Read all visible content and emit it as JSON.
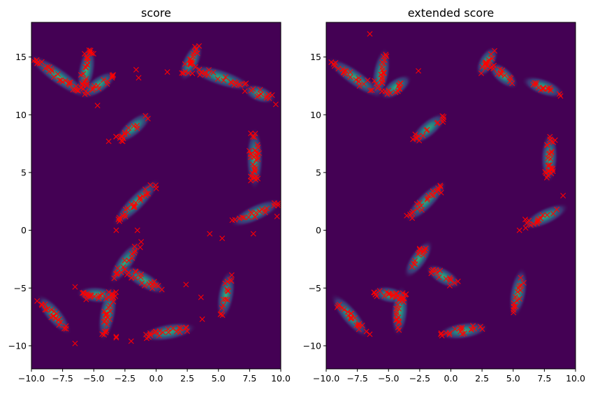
{
  "chart_data": [
    {
      "type": "scatter",
      "title": "score",
      "background_color": "#440154",
      "density_colormap": "viridis",
      "marker": "x",
      "marker_color": "#ff0000",
      "xlim": [
        -10,
        10
      ],
      "ylim": [
        -12,
        18
      ],
      "xticks": [
        -10.0,
        -7.5,
        -5.0,
        -2.5,
        0.0,
        2.5,
        5.0,
        7.5,
        10.0
      ],
      "xtick_labels": [
        "−10.0",
        "−7.5",
        "−5.0",
        "−2.5",
        "0.0",
        "2.5",
        "5.0",
        "7.5",
        "10.0"
      ],
      "yticks": [
        -10,
        -5,
        0,
        5,
        10,
        15
      ],
      "ytick_labels": [
        "−10",
        "−5",
        "0",
        "5",
        "10",
        "15"
      ],
      "clusters": [
        {
          "center": [
            -7.8,
            13.3
          ],
          "length": 2.6,
          "angle": -35,
          "count": 30
        },
        {
          "center": [
            -5.6,
            13.8
          ],
          "length": 1.8,
          "angle": 80,
          "count": 28
        },
        {
          "center": [
            -4.6,
            12.6
          ],
          "length": 1.5,
          "angle": 35,
          "count": 14
        },
        {
          "center": [
            -1.8,
            8.9
          ],
          "length": 1.6,
          "angle": 40,
          "count": 16
        },
        {
          "center": [
            2.8,
            14.6
          ],
          "length": 1.5,
          "angle": 65,
          "count": 22
        },
        {
          "center": [
            5.2,
            13.2
          ],
          "length": 2.4,
          "angle": -18,
          "count": 22
        },
        {
          "center": [
            8.3,
            11.8
          ],
          "length": 1.2,
          "angle": -20,
          "count": 12
        },
        {
          "center": [
            7.9,
            6.2
          ],
          "length": 2.2,
          "angle": 90,
          "count": 34
        },
        {
          "center": [
            8.0,
            1.5
          ],
          "length": 2.0,
          "angle": 25,
          "count": 20
        },
        {
          "center": [
            -1.6,
            2.4
          ],
          "length": 2.3,
          "angle": 45,
          "count": 26
        },
        {
          "center": [
            -2.5,
            -2.8
          ],
          "length": 1.8,
          "angle": 55,
          "count": 16
        },
        {
          "center": [
            -1.0,
            -4.3
          ],
          "length": 1.8,
          "angle": -30,
          "count": 20
        },
        {
          "center": [
            -4.7,
            -5.6
          ],
          "length": 1.5,
          "angle": -5,
          "count": 24
        },
        {
          "center": [
            -3.9,
            -7.2
          ],
          "length": 2.0,
          "angle": 80,
          "count": 24
        },
        {
          "center": [
            -8.2,
            -7.3
          ],
          "length": 1.8,
          "angle": -50,
          "count": 22
        },
        {
          "center": [
            5.6,
            -5.6
          ],
          "length": 1.8,
          "angle": 80,
          "count": 16
        },
        {
          "center": [
            1.0,
            -8.8
          ],
          "length": 2.0,
          "angle": 10,
          "count": 22
        }
      ],
      "outliers": [
        [
          -4.7,
          10.8
        ],
        [
          -1.6,
          13.9
        ],
        [
          0.9,
          13.7
        ],
        [
          -3.8,
          7.7
        ],
        [
          -3.2,
          8.1
        ],
        [
          4.3,
          -0.3
        ],
        [
          5.3,
          -0.7
        ],
        [
          7.8,
          -0.3
        ],
        [
          9.7,
          1.2
        ],
        [
          -3.2,
          0.0
        ],
        [
          -1.5,
          0.0
        ],
        [
          -1.2,
          -1.0
        ],
        [
          -6.5,
          -9.8
        ],
        [
          -2.0,
          -9.6
        ],
        [
          -3.2,
          -9.3
        ],
        [
          3.7,
          -7.7
        ],
        [
          3.6,
          -5.8
        ],
        [
          2.4,
          -4.7
        ],
        [
          -6.5,
          -4.9
        ],
        [
          -3.2,
          -9.2
        ],
        [
          -1.4,
          13.2
        ],
        [
          9.6,
          10.9
        ]
      ]
    },
    {
      "type": "scatter",
      "title": "extended score",
      "background_color": "#440154",
      "density_colormap": "viridis",
      "marker": "x",
      "marker_color": "#ff0000",
      "xlim": [
        -10,
        10
      ],
      "ylim": [
        -12,
        18
      ],
      "xticks": [
        -10.0,
        -7.5,
        -5.0,
        -2.5,
        0.0,
        2.5,
        5.0,
        7.5,
        10.0
      ],
      "xtick_labels": [
        "−10.0",
        "−7.5",
        "−5.0",
        "−2.5",
        "0.0",
        "2.5",
        "5.0",
        "7.5",
        "10.0"
      ],
      "yticks": [
        -10,
        -5,
        0,
        5,
        10,
        15
      ],
      "ytick_labels": [
        "−10",
        "−5",
        "0",
        "5",
        "10",
        "15"
      ],
      "clusters": [
        {
          "center": [
            -7.7,
            13.2
          ],
          "length": 2.4,
          "angle": -35,
          "count": 22
        },
        {
          "center": [
            -5.6,
            13.6
          ],
          "length": 1.8,
          "angle": 80,
          "count": 22
        },
        {
          "center": [
            -4.4,
            12.4
          ],
          "length": 1.3,
          "angle": 35,
          "count": 12
        },
        {
          "center": [
            -1.8,
            8.8
          ],
          "length": 1.6,
          "angle": 40,
          "count": 14
        },
        {
          "center": [
            2.9,
            14.6
          ],
          "length": 1.2,
          "angle": 60,
          "count": 16
        },
        {
          "center": [
            4.2,
            13.4
          ],
          "length": 1.3,
          "angle": -40,
          "count": 14
        },
        {
          "center": [
            7.4,
            12.4
          ],
          "length": 1.6,
          "angle": -20,
          "count": 16
        },
        {
          "center": [
            7.9,
            6.3
          ],
          "length": 1.8,
          "angle": 88,
          "count": 28
        },
        {
          "center": [
            7.6,
            1.2
          ],
          "length": 1.8,
          "angle": 25,
          "count": 16
        },
        {
          "center": [
            -2.0,
            2.5
          ],
          "length": 2.0,
          "angle": 45,
          "count": 22
        },
        {
          "center": [
            -2.6,
            -2.5
          ],
          "length": 1.6,
          "angle": 55,
          "count": 14
        },
        {
          "center": [
            -0.6,
            -4.0
          ],
          "length": 1.4,
          "angle": -30,
          "count": 14
        },
        {
          "center": [
            -4.9,
            -5.6
          ],
          "length": 1.3,
          "angle": -10,
          "count": 22
        },
        {
          "center": [
            -4.1,
            -7.0
          ],
          "length": 1.8,
          "angle": 85,
          "count": 20
        },
        {
          "center": [
            -8.1,
            -7.4
          ],
          "length": 2.0,
          "angle": -50,
          "count": 20
        },
        {
          "center": [
            5.4,
            -5.4
          ],
          "length": 1.8,
          "angle": 80,
          "count": 16
        },
        {
          "center": [
            1.0,
            -8.7
          ],
          "length": 1.8,
          "angle": 8,
          "count": 18
        }
      ],
      "outliers": [
        [
          -6.5,
          17.0
        ],
        [
          -2.6,
          13.8
        ],
        [
          -0.8,
          -9.0
        ],
        [
          -6.5,
          -9.0
        ],
        [
          5.5,
          0.0
        ],
        [
          9.0,
          3.0
        ],
        [
          -2.8,
          8.0
        ],
        [
          6.0,
          0.2
        ]
      ]
    }
  ]
}
